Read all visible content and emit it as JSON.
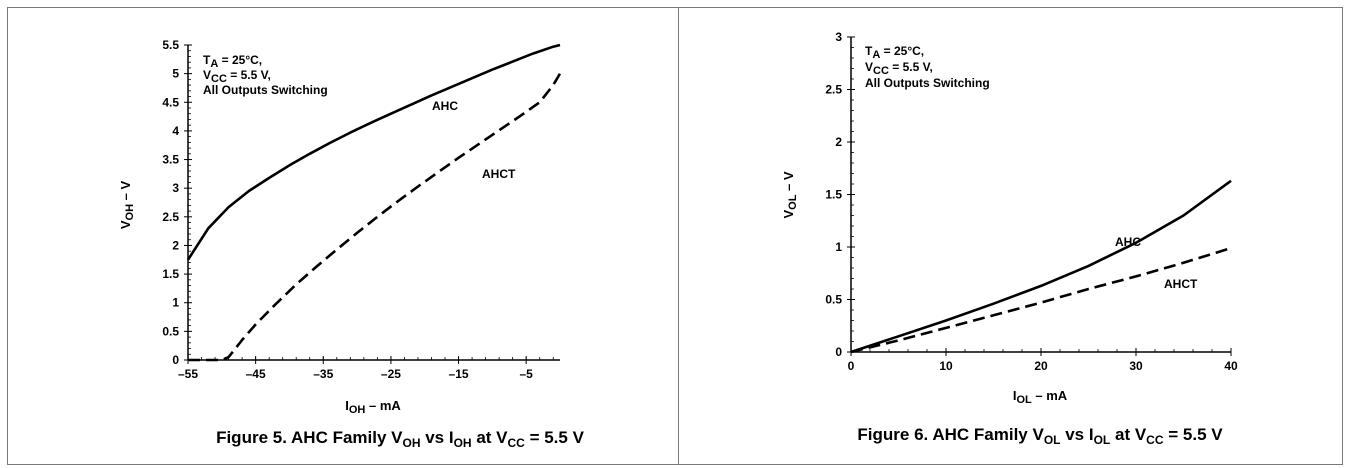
{
  "chart_data": [
    {
      "type": "line",
      "caption": {
        "pre": "Figure 5. AHC Family V",
        "s1": "OH",
        "mid": " vs I",
        "s2": "OH",
        "post": " at V",
        "s3": "CC",
        "tail": " = 5.5 V"
      },
      "xlabel": {
        "base": "I",
        "sub": "OH",
        "rest": " – mA"
      },
      "ylabel": {
        "base": "V",
        "sub": "OH",
        "rest": " – V"
      },
      "xlim": [
        -55,
        0
      ],
      "ylim": [
        0,
        5.5
      ],
      "x_ticks": [
        -55,
        -45,
        -35,
        -25,
        -15,
        -5
      ],
      "x_tick_labels": [
        "–55",
        "–45",
        "–35",
        "–25",
        "–15",
        "–5"
      ],
      "y_ticks": [
        0,
        0.5,
        1,
        1.5,
        2,
        2.5,
        3,
        3.5,
        4,
        4.5,
        5,
        5.5
      ],
      "y_tick_labels": [
        "0",
        "0.5",
        "1",
        "1.5",
        "2",
        "2.5",
        "3",
        "3.5",
        "4",
        "4.5",
        "5",
        "5.5"
      ],
      "conditions": [
        {
          "base": "T",
          "sub": "A",
          "rest": " = 25°C,"
        },
        {
          "base": "V",
          "sub": "CC",
          "rest": " = 5.5 V,"
        },
        {
          "base": "All Outputs Switching",
          "sub": "",
          "rest": ""
        }
      ],
      "grid": false,
      "series": [
        {
          "name": "AHC",
          "dashed": false,
          "x": [
            -55,
            -52,
            -49,
            -46,
            -43,
            -40,
            -37,
            -34,
            -31,
            -28,
            -25,
            -22,
            -19,
            -16,
            -13,
            -10,
            -7,
            -4,
            -1,
            0
          ],
          "y": [
            1.75,
            2.3,
            2.67,
            2.95,
            3.18,
            3.4,
            3.6,
            3.79,
            3.97,
            4.14,
            4.3,
            4.46,
            4.62,
            4.77,
            4.92,
            5.07,
            5.21,
            5.35,
            5.47,
            5.5
          ]
        },
        {
          "name": "AHCT",
          "dashed": true,
          "x": [
            -55,
            -52,
            -50,
            -49,
            -47,
            -45,
            -42,
            -39,
            -36,
            -33,
            -30,
            -27,
            -24,
            -21,
            -18,
            -15,
            -12,
            -9,
            -6,
            -3,
            -1,
            0
          ],
          "y": [
            0,
            0,
            0,
            0.05,
            0.35,
            0.62,
            0.98,
            1.32,
            1.63,
            1.93,
            2.22,
            2.5,
            2.77,
            3.03,
            3.28,
            3.53,
            3.77,
            4.01,
            4.25,
            4.5,
            4.8,
            5.0
          ]
        }
      ]
    },
    {
      "type": "line",
      "caption": {
        "pre": "Figure 6. AHC Family V",
        "s1": "OL",
        "mid": " vs I",
        "s2": "OL",
        "post": " at V",
        "s3": "CC",
        "tail": " = 5.5 V"
      },
      "xlabel": {
        "base": "I",
        "sub": "OL",
        "rest": " – mA"
      },
      "ylabel": {
        "base": "V",
        "sub": "OL",
        "rest": " – V"
      },
      "xlim": [
        0,
        40
      ],
      "ylim": [
        0,
        3
      ],
      "x_ticks": [
        0,
        10,
        20,
        30,
        40
      ],
      "x_tick_labels": [
        "0",
        "10",
        "20",
        "30",
        "40"
      ],
      "y_ticks": [
        0,
        0.5,
        1,
        1.5,
        2,
        2.5,
        3
      ],
      "y_tick_labels": [
        "0",
        "0.5",
        "1",
        "1.5",
        "2",
        "2.5",
        "3"
      ],
      "conditions": [
        {
          "base": "T",
          "sub": "A",
          "rest": " = 25°C,"
        },
        {
          "base": "V",
          "sub": "CC",
          "rest": " = 5.5 V,"
        },
        {
          "base": "All Outputs Switching",
          "sub": "",
          "rest": ""
        }
      ],
      "grid": false,
      "series": [
        {
          "name": "AHC",
          "dashed": false,
          "x": [
            0,
            5,
            10,
            15,
            20,
            25,
            30,
            35,
            40
          ],
          "y": [
            0,
            0.15,
            0.3,
            0.46,
            0.63,
            0.82,
            1.04,
            1.3,
            1.63
          ]
        },
        {
          "name": "AHCT",
          "dashed": true,
          "x": [
            0,
            5,
            10,
            15,
            20,
            25,
            30,
            35,
            40
          ],
          "y": [
            0,
            0.11,
            0.23,
            0.35,
            0.47,
            0.6,
            0.72,
            0.85,
            0.99
          ]
        }
      ]
    }
  ]
}
